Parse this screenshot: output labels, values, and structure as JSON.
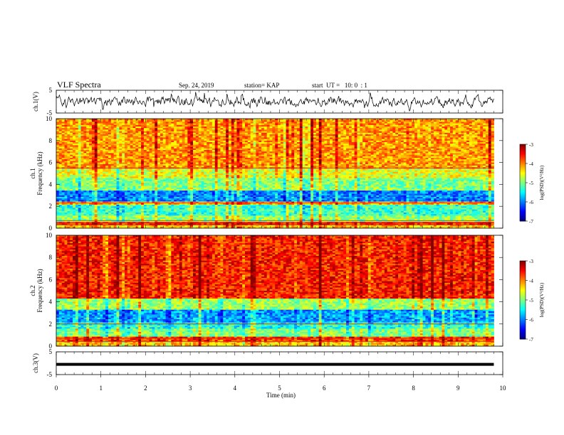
{
  "header": {
    "title": "VLF Spectra",
    "date": "Sep. 24, 2019",
    "station": "station= KAP",
    "start": "start  UT =   10: 0  : 1"
  },
  "chart_data": [
    {
      "type": "line",
      "panel": "ch1-waveform",
      "ylabel": "ch.1(V)",
      "ylim": [
        -5,
        5
      ],
      "yticks": [
        "5",
        "-5"
      ],
      "xlim": [
        0,
        10
      ],
      "color": "#000000",
      "description_of_series": "noisy waveform, mostly between -2.5 and 2.5 V, extends to x=9.8 min"
    },
    {
      "type": "heatmap",
      "panel": "ch1-spectrogram",
      "ylabel": "ch.1\nFrequency  (kHz)",
      "ylim": [
        0,
        10
      ],
      "yticks": [
        "0",
        "2",
        "4",
        "6",
        "8",
        "10"
      ],
      "xlim": [
        0,
        10
      ],
      "data_xmax": 9.8,
      "colorbar": {
        "label": "log(PSD)(V²/Hz)",
        "range": [
          -7,
          -3
        ],
        "ticks": [
          "-3",
          "-4",
          "-5",
          "-6",
          "-7"
        ]
      },
      "bands_log_psd": [
        {
          "f": [
            0.0,
            0.3
          ],
          "v": -4.3
        },
        {
          "f": [
            0.3,
            0.6
          ],
          "v": -3.6
        },
        {
          "f": [
            0.6,
            1.2
          ],
          "v": -4.9
        },
        {
          "f": [
            1.2,
            2.2
          ],
          "v": -5.3
        },
        {
          "f": [
            2.2,
            2.5
          ],
          "v": -4.2
        },
        {
          "f": [
            2.5,
            3.4
          ],
          "v": -6.0
        },
        {
          "f": [
            3.4,
            4.6
          ],
          "v": -5.0
        },
        {
          "f": [
            4.6,
            5.4
          ],
          "v": -4.6
        },
        {
          "f": [
            5.4,
            10.0
          ],
          "v": -4.1
        }
      ],
      "lines_khz": [
        0.3,
        0.5,
        0.7,
        2.3,
        5.5
      ]
    },
    {
      "type": "heatmap",
      "panel": "ch2-spectrogram",
      "ylabel": "ch.2\nFrequency  (kHz)",
      "ylim": [
        0,
        10
      ],
      "yticks": [
        "0",
        "2",
        "4",
        "6",
        "8",
        "10"
      ],
      "xlim": [
        0,
        10
      ],
      "data_xmax": 9.8,
      "colorbar": {
        "label": "log(PSD)(V²/Hz)",
        "range": [
          -7,
          -3
        ],
        "ticks": [
          "-3",
          "-4",
          "-5",
          "-6",
          "-7"
        ]
      },
      "bands_log_psd": [
        {
          "f": [
            0.0,
            0.4
          ],
          "v": -4.3
        },
        {
          "f": [
            0.4,
            0.8
          ],
          "v": -3.7
        },
        {
          "f": [
            0.8,
            1.6
          ],
          "v": -5.0
        },
        {
          "f": [
            1.6,
            2.2
          ],
          "v": -5.4
        },
        {
          "f": [
            2.2,
            3.3
          ],
          "v": -5.9
        },
        {
          "f": [
            3.3,
            4.3
          ],
          "v": -4.9
        },
        {
          "f": [
            4.3,
            10.0
          ],
          "v": -3.6
        }
      ],
      "lines_khz": [
        0.4,
        0.7,
        2.0
      ]
    },
    {
      "type": "line",
      "panel": "ch3-waveform",
      "ylabel": "ch.3(V)",
      "ylim": [
        -5,
        5
      ],
      "yticks": [
        "5",
        "-5"
      ],
      "xlim": [
        0,
        10
      ],
      "xlabel": "Time  (min)",
      "xticks": [
        "0",
        "1",
        "2",
        "3",
        "4",
        "5",
        "6",
        "7",
        "8",
        "9",
        "10"
      ],
      "constant_value": -0.5,
      "color": "#000000"
    }
  ]
}
